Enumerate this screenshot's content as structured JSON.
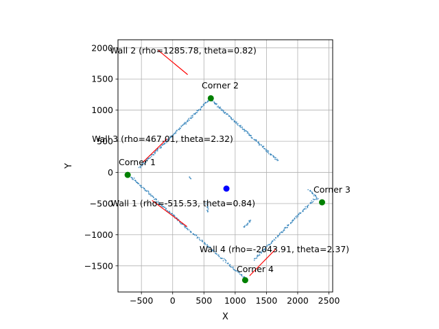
{
  "chart_data": {
    "type": "scatter",
    "title": "",
    "xlabel": "X",
    "ylabel": "Y",
    "xlim": [
      -875,
      2560
    ],
    "ylim": [
      -1920,
      2130
    ],
    "xticks": [
      -500,
      0,
      500,
      1000,
      1500,
      2000,
      2500
    ],
    "xtick_labels": [
      "−500",
      "0",
      "500",
      "1000",
      "1500",
      "2000",
      "2500"
    ],
    "yticks": [
      -1500,
      -1000,
      -500,
      0,
      500,
      1000,
      1500,
      2000
    ],
    "ytick_labels": [
      "−1500",
      "−1000",
      "−500",
      "0",
      "500",
      "1000",
      "1500",
      "2000"
    ],
    "grid": true,
    "colors": {
      "scan": "#1f77b4",
      "wall": "#ff0000",
      "corner": "#008000",
      "center": "#0000ff"
    },
    "scan_segments": [
      {
        "from": [
          -720,
          -20
        ],
        "to": [
          200,
          -870
        ],
        "n": 110
      },
      {
        "from": [
          200,
          -870
        ],
        "to": [
          1150,
          -1690
        ],
        "n": 90
      },
      {
        "from": [
          -530,
          80
        ],
        "to": [
          600,
          1180
        ],
        "n": 140
      },
      {
        "from": [
          600,
          1180
        ],
        "to": [
          1680,
          190
        ],
        "n": 130
      },
      {
        "from": [
          1300,
          -1400
        ],
        "to": [
          2280,
          -420
        ],
        "n": 110
      },
      {
        "from": [
          2180,
          -270
        ],
        "to": [
          2330,
          -430
        ],
        "n": 20
      },
      {
        "from": [
          540,
          -480
        ],
        "to": [
          570,
          -640
        ],
        "n": 12
      },
      {
        "from": [
          1140,
          -880
        ],
        "to": [
          1250,
          -770
        ],
        "n": 14
      },
      {
        "from": [
          280,
          -70
        ],
        "to": [
          290,
          -110
        ],
        "n": 4
      }
    ],
    "walls": [
      {
        "label": "Wall 1 (rho=-515.53, theta=0.84)",
        "from": [
          -330,
          -450
        ],
        "to": [
          230,
          -870
        ]
      },
      {
        "label": "Wall 2 (rho=1285.78, theta=0.82)",
        "from": [
          -230,
          1960
        ],
        "to": [
          240,
          1570
        ]
      },
      {
        "label": "Wall 3 (rho=467.01, theta=2.32)",
        "from": [
          -480,
          160
        ],
        "to": [
          -90,
          540
        ]
      },
      {
        "label": "Wall 4 (rho=-2043.91, theta=2.37)",
        "from": [
          1230,
          -1660
        ],
        "to": [
          1650,
          -1230
        ]
      }
    ],
    "corners": [
      {
        "label": "Corner 1",
        "x": -720,
        "y": -40
      },
      {
        "label": "Corner 2",
        "x": 610,
        "y": 1190
      },
      {
        "label": "Corner 3",
        "x": 2390,
        "y": -480
      },
      {
        "label": "Corner 4",
        "x": 1160,
        "y": -1730
      }
    ],
    "center": {
      "x": 860,
      "y": -260
    }
  }
}
